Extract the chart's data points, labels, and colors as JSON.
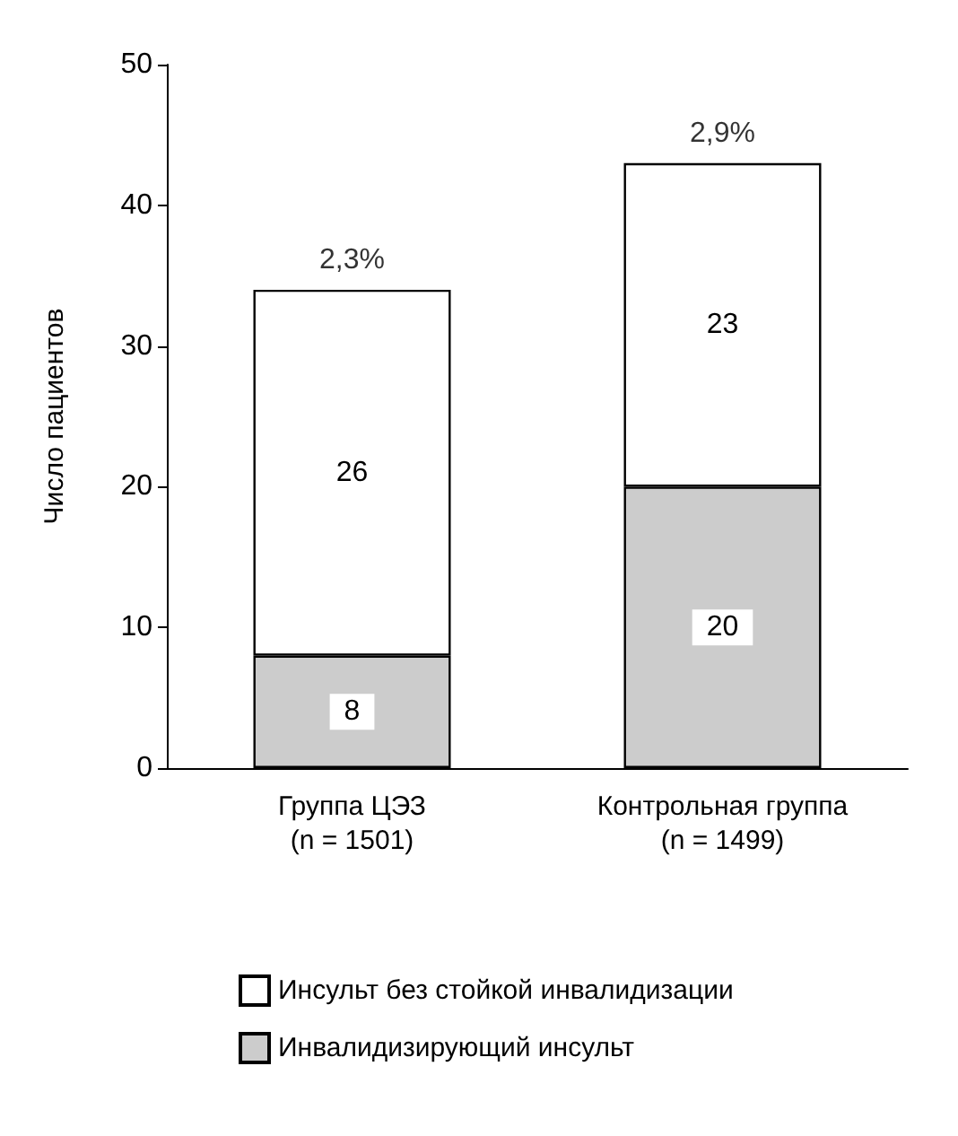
{
  "chart_data": {
    "type": "bar",
    "stacked": true,
    "ylabel": "Число пациентов",
    "categories": [
      "Группа ЦЭЗ\n(n = 1501)",
      "Контрольная группа\n(n = 1499)"
    ],
    "series": [
      {
        "name": "Инвалидизирующий инсульт",
        "color": "#cccccc",
        "values": [
          8,
          20
        ]
      },
      {
        "name": "Инсульт без стойкой инвалидизации",
        "color": "#ffffff",
        "values": [
          26,
          23
        ]
      }
    ],
    "annotations": [
      {
        "text": "2,3%",
        "x": "Группа ЦЭЗ\n(n = 1501)",
        "y": 34
      },
      {
        "text": "2,9%",
        "x": "Контрольная группа\n(n = 1499)",
        "y": 43
      }
    ],
    "data_labels": true,
    "ylim": [
      0,
      50
    ],
    "yticks": [
      0,
      10,
      20,
      30,
      40,
      50
    ],
    "grid": false,
    "legend": "bottom"
  }
}
